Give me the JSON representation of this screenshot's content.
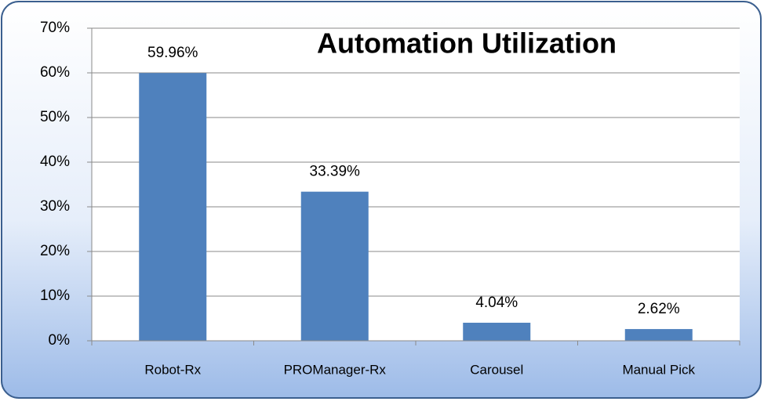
{
  "chart_data": {
    "type": "bar",
    "title": "Automation Utilization",
    "categories": [
      "Robot-Rx",
      "PROManager-Rx",
      "Carousel",
      "Manual Pick"
    ],
    "values": [
      59.96,
      33.39,
      4.04,
      2.62
    ],
    "value_labels": [
      "59.96%",
      "33.39%",
      "4.04%",
      "2.62%"
    ],
    "color": "#4f81bd",
    "ylim": [
      0,
      70
    ],
    "yticks": [
      {
        "value": 0,
        "label": "0%"
      },
      {
        "value": 10,
        "label": "10%"
      },
      {
        "value": 20,
        "label": "20%"
      },
      {
        "value": 30,
        "label": "30%"
      },
      {
        "value": 40,
        "label": "40%"
      },
      {
        "value": 50,
        "label": "50%"
      },
      {
        "value": 60,
        "label": "60%"
      },
      {
        "value": 70,
        "label": "70%"
      }
    ],
    "grid": true
  }
}
